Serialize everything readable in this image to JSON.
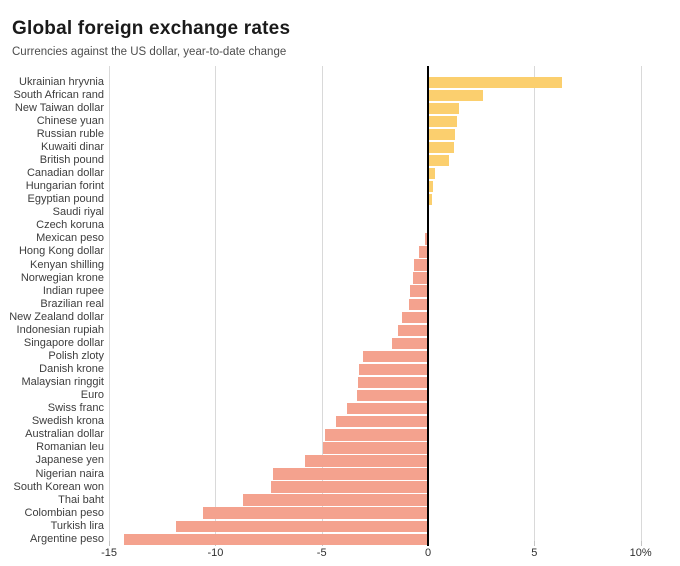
{
  "header": {
    "title": "Global foreign exchange rates",
    "subtitle": "Currencies against the US dollar, year-to-date change"
  },
  "colors": {
    "positive": "#fbcf6e",
    "negative": "#f4a28e",
    "zero_line": "#000000",
    "gridline": "#d9d9d9",
    "title_text": "#1a1a1a",
    "subtitle_text": "#4d4d4d",
    "label_text": "#3d3d3d",
    "axis_text": "#2f2f2f"
  },
  "chart_data": {
    "type": "bar",
    "orientation": "horizontal",
    "title": "Global foreign exchange rates",
    "subtitle": "Currencies against the US dollar, year-to-date change",
    "unit": "%",
    "grid": "vertical",
    "legend": "none",
    "categories": [
      "Ukrainian hryvnia",
      "South African rand",
      "New Taiwan dollar",
      "Chinese yuan",
      "Russian ruble",
      "Kuwaiti dinar",
      "British pound",
      "Canadian dollar",
      "Hungarian forint",
      "Egyptian pound",
      "Saudi riyal",
      "Czech koruna",
      "Mexican peso",
      "Hong Kong dollar",
      "Kenyan shilling",
      "Norwegian krone",
      "Indian rupee",
      "Brazilian real",
      "New Zealand dollar",
      "Indonesian rupiah",
      "Singapore dollar",
      "Polish zloty",
      "Danish krone",
      "Malaysian ringgit",
      "Euro",
      "Swiss franc",
      "Swedish krona",
      "Australian dollar",
      "Romanian leu",
      "Japanese yen",
      "Nigerian naira",
      "South Korean won",
      "Thai baht",
      "Colombian peso",
      "Turkish lira",
      "Argentine peso"
    ],
    "values": [
      6.3,
      2.6,
      1.45,
      1.35,
      1.25,
      1.2,
      1.0,
      0.35,
      0.25,
      0.2,
      0.05,
      0.05,
      -0.15,
      -0.4,
      -0.65,
      -0.7,
      -0.85,
      -0.9,
      -1.2,
      -1.4,
      -1.7,
      -3.05,
      -3.25,
      -3.3,
      -3.35,
      -3.8,
      -4.35,
      -4.85,
      -4.95,
      -5.8,
      -7.3,
      -7.4,
      -8.7,
      -10.6,
      -11.85,
      -14.3
    ],
    "x_axis": {
      "ticks": [
        -15,
        -10,
        -5,
        0,
        5,
        10
      ],
      "tick_labels": [
        "-15",
        "-10",
        "-5",
        "0",
        "5",
        "10%"
      ],
      "range": [
        -15,
        10.9
      ]
    }
  }
}
